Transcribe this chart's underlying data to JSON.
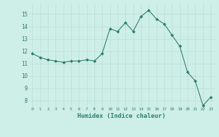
{
  "x": [
    0,
    1,
    2,
    3,
    4,
    5,
    6,
    7,
    8,
    9,
    10,
    11,
    12,
    13,
    14,
    15,
    16,
    17,
    18,
    19,
    20,
    21,
    22,
    23
  ],
  "y": [
    11.8,
    11.5,
    11.3,
    11.2,
    11.1,
    11.2,
    11.2,
    11.3,
    11.2,
    11.8,
    13.8,
    13.6,
    14.3,
    13.6,
    14.8,
    15.3,
    14.6,
    14.2,
    13.3,
    12.4,
    10.3,
    9.6,
    7.6,
    8.3
  ],
  "xlabel": "Humidex (Indice chaleur)",
  "xlim": [
    -0.5,
    23.5
  ],
  "ylim": [
    7.5,
    15.8
  ],
  "yticks": [
    8,
    9,
    10,
    11,
    12,
    13,
    14,
    15
  ],
  "xticks": [
    0,
    1,
    2,
    3,
    4,
    5,
    6,
    7,
    8,
    9,
    10,
    11,
    12,
    13,
    14,
    15,
    16,
    17,
    18,
    19,
    20,
    21,
    22,
    23
  ],
  "line_color": "#2e7d6e",
  "marker_color": "#2e7d6e",
  "bg_color": "#ceeee8",
  "grid_color": "#b8ddd8",
  "label_color": "#2e7d6e",
  "tick_color": "#2e7d6e"
}
